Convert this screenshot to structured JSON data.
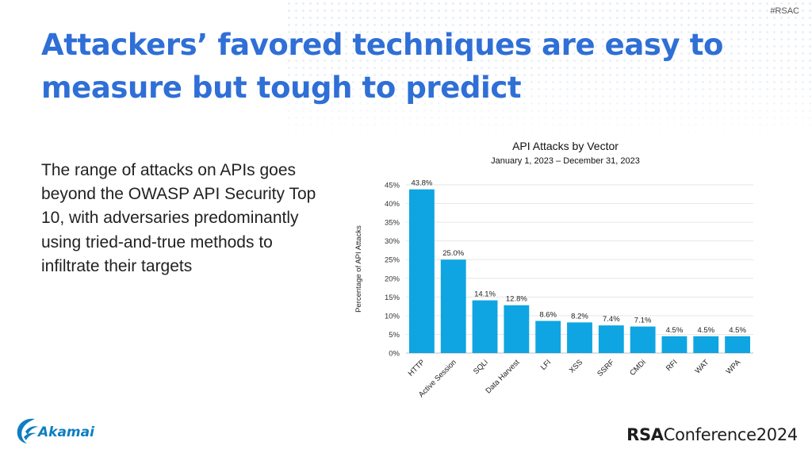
{
  "header": {
    "hashtag": "#RSAC"
  },
  "slide": {
    "title": "Attackers’ favored techniques are easy to measure but tough to predict",
    "body": "The range of attacks on APIs goes beyond the OWASP API Security Top 10, with adversaries predominantly using tried-and-true methods to infiltrate their targets"
  },
  "footer": {
    "left_logo": "Akamai",
    "right_logo_bold": "RSA",
    "right_logo_text": "Conference",
    "right_logo_year": "2024"
  },
  "colors": {
    "title": "#2f6fd6",
    "bar": "#0ea5e2",
    "akamai": "#0e7ec2"
  },
  "chart_data": {
    "type": "bar",
    "title": "API Attacks by Vector",
    "subtitle": "January 1, 2023 – December 31, 2023",
    "xlabel": "",
    "ylabel": "Percentage of API Attacks",
    "categories": [
      "HTTP",
      "Active Session",
      "SQLi",
      "Data Harvest",
      "LFI",
      "XSS",
      "SSRF",
      "CMDi",
      "RFI",
      "WAT",
      "WPA"
    ],
    "values": [
      43.8,
      25.0,
      14.1,
      12.8,
      8.6,
      8.2,
      7.4,
      7.1,
      4.5,
      4.5,
      4.5
    ],
    "value_labels": [
      "43.8%",
      "25.0%",
      "14.1%",
      "12.8%",
      "8.6%",
      "8.2%",
      "7.4%",
      "7.1%",
      "4.5%",
      "4.5%",
      "4.5%"
    ],
    "yticks": [
      0,
      5,
      10,
      15,
      20,
      25,
      30,
      35,
      40,
      45
    ],
    "ytick_labels": [
      "0%",
      "5%",
      "10%",
      "15%",
      "20%",
      "25%",
      "30%",
      "35%",
      "40%",
      "45%"
    ],
    "ylim": [
      0,
      45
    ],
    "grid": true,
    "legend": "none"
  }
}
